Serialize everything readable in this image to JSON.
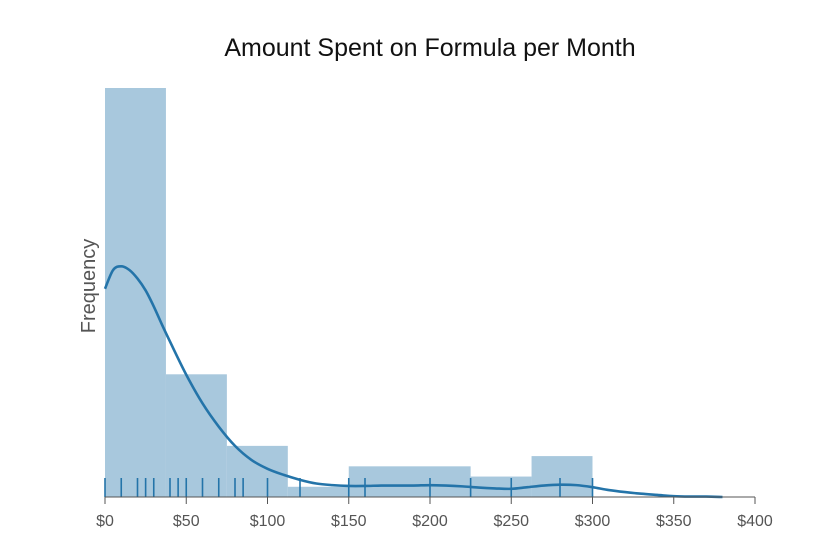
{
  "chart_data": {
    "type": "histogram",
    "title": "Amount Spent on Formula per Month",
    "xlabel": "",
    "ylabel": "Frequency",
    "xlim": [
      0,
      400
    ],
    "x_ticks": [
      0,
      50,
      100,
      150,
      200,
      250,
      300,
      350,
      400
    ],
    "x_tick_labels": [
      "$0",
      "$50",
      "$100",
      "$150",
      "$200",
      "$250",
      "$300",
      "$350",
      "$400"
    ],
    "bins": [
      {
        "start": 0,
        "end": 37.5,
        "count": 10
      },
      {
        "start": 37.5,
        "end": 75,
        "count": 3
      },
      {
        "start": 75,
        "end": 112.5,
        "count": 1.25
      },
      {
        "start": 112.5,
        "end": 150,
        "count": 0.25
      },
      {
        "start": 150,
        "end": 225,
        "count": 0.75
      },
      {
        "start": 225,
        "end": 262.5,
        "count": 0.5
      },
      {
        "start": 262.5,
        "end": 300,
        "count": 1
      }
    ],
    "kde": {
      "x": [
        0,
        5,
        10,
        15,
        20,
        25,
        30,
        35,
        40,
        50,
        60,
        70,
        80,
        90,
        100,
        110,
        120,
        130,
        140,
        150,
        160,
        170,
        180,
        190,
        200,
        210,
        220,
        230,
        240,
        250,
        260,
        270,
        280,
        290,
        300,
        310,
        320,
        330,
        340,
        350,
        360,
        370,
        380
      ],
      "y": [
        5.09,
        5.55,
        5.64,
        5.55,
        5.34,
        5.05,
        4.66,
        4.22,
        3.8,
        2.99,
        2.29,
        1.72,
        1.25,
        0.91,
        0.69,
        0.54,
        0.42,
        0.33,
        0.29,
        0.27,
        0.27,
        0.28,
        0.28,
        0.28,
        0.29,
        0.28,
        0.26,
        0.23,
        0.21,
        0.2,
        0.24,
        0.28,
        0.3,
        0.29,
        0.24,
        0.17,
        0.12,
        0.08,
        0.05,
        0.02,
        0.01,
        0.01,
        0.0
      ]
    },
    "rug": [
      0,
      10,
      20,
      25,
      30,
      40,
      45,
      50,
      60,
      70,
      80,
      85,
      100,
      120,
      150,
      160,
      200,
      225,
      250,
      280,
      300
    ],
    "ylim": [
      0,
      10
    ],
    "colors": {
      "bar": "#a8c8dd",
      "kde": "#2474a9",
      "rug": "#2474a9",
      "axis": "#555555"
    },
    "grid": false
  }
}
